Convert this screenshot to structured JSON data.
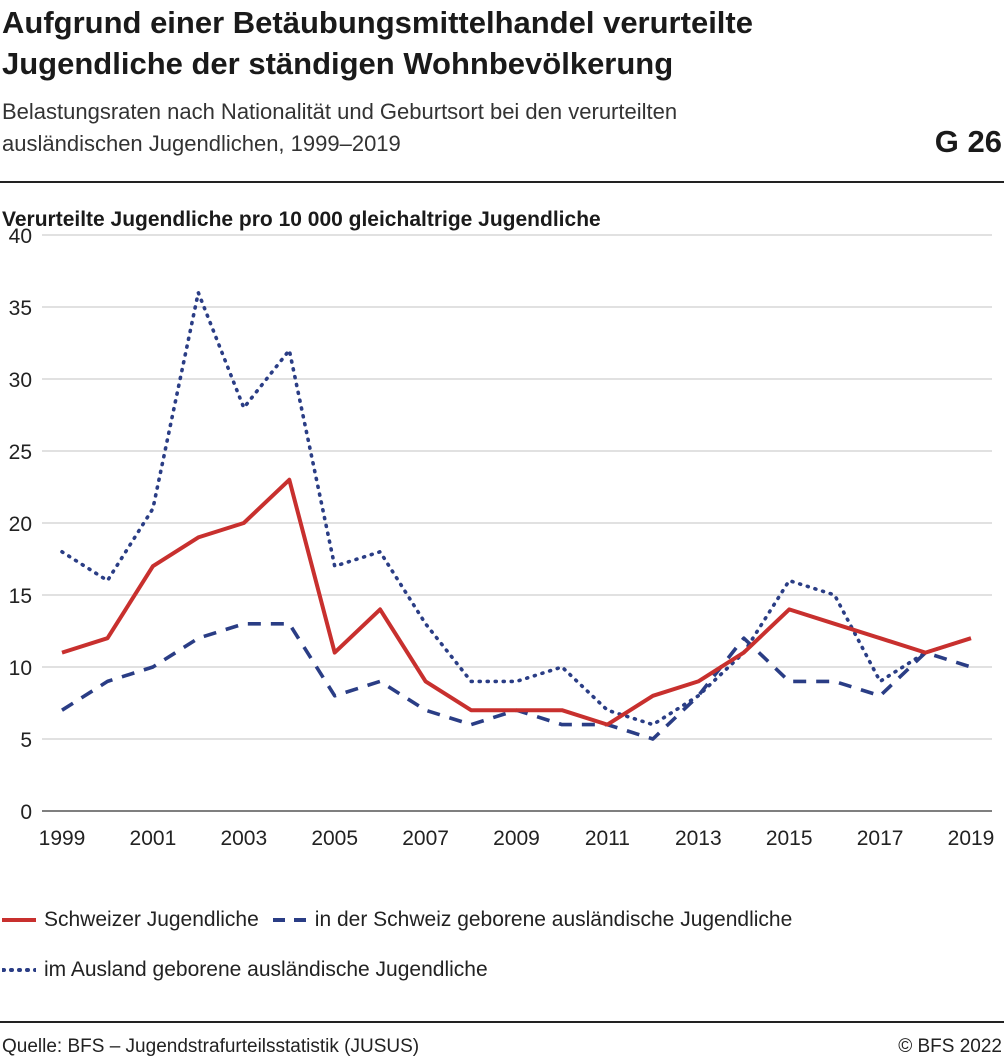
{
  "header": {
    "title_line1": "Aufgrund einer Betäubungsmittelhandel verurteilte",
    "title_line2": "Jugendliche der ständigen Wohnbevölkerung",
    "subtitle_line1": "Belastungsraten nach Nationalität und Geburtsort bei den verurteilten",
    "subtitle_line2": "ausländischen Jugendlichen, 1999–2019",
    "graphic_number": "G 26"
  },
  "footer": {
    "source": "Quelle: BFS – Jugendstrafurteilsstatistik (JUSUS)",
    "copyright": "© BFS 2022"
  },
  "chart_data": {
    "type": "line",
    "ylabel": "Verurteilte Jugendliche pro 10 000 gleichaltrige Jugendliche",
    "xlabel": "",
    "x": [
      1999,
      2000,
      2001,
      2002,
      2003,
      2004,
      2005,
      2006,
      2007,
      2008,
      2009,
      2010,
      2011,
      2012,
      2013,
      2014,
      2015,
      2016,
      2017,
      2018,
      2019
    ],
    "x_tick_labels": [
      "1999",
      "2001",
      "2003",
      "2005",
      "2007",
      "2009",
      "2011",
      "2013",
      "2015",
      "2017",
      "2019"
    ],
    "y_ticks": [
      0,
      5,
      10,
      15,
      20,
      25,
      30,
      35,
      40
    ],
    "ylim": [
      0,
      40
    ],
    "grid": "horizontal",
    "legend_position": "bottom",
    "series": [
      {
        "name": "Schweizer Jugendliche",
        "style": "solid",
        "color": "#c8302e",
        "values": [
          11,
          12,
          17,
          19,
          20,
          23,
          11,
          14,
          9,
          7,
          7,
          7,
          6,
          8,
          9,
          11,
          14,
          13,
          12,
          11,
          12
        ]
      },
      {
        "name": "in der Schweiz geborene ausländische Jugendliche",
        "style": "dashed",
        "color": "#2a3d85",
        "values": [
          7,
          9,
          10,
          12,
          13,
          13,
          8,
          9,
          7,
          6,
          7,
          6,
          6,
          5,
          8,
          12,
          9,
          9,
          8,
          11,
          10
        ]
      },
      {
        "name": "im Ausland geborene ausländische Jugendliche",
        "style": "dotted",
        "color": "#2a3d85",
        "values": [
          18,
          16,
          21,
          36,
          28,
          32,
          17,
          18,
          13,
          9,
          9,
          10,
          7,
          6,
          8,
          11,
          16,
          15,
          9,
          11,
          12
        ]
      }
    ]
  }
}
